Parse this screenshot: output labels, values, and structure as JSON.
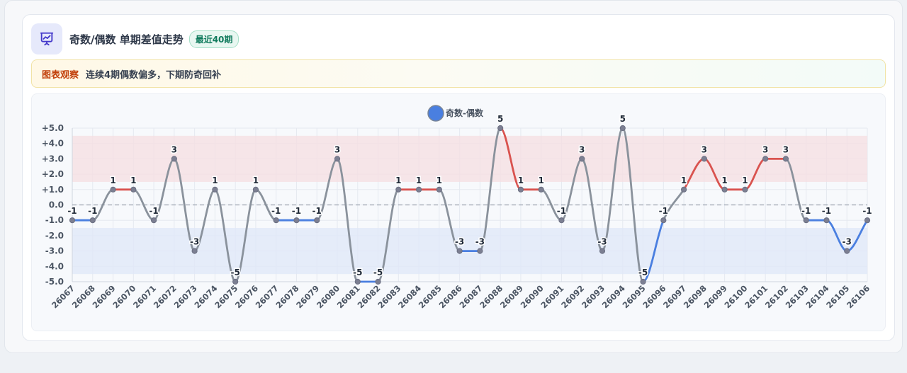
{
  "header": {
    "icon": "presentation-chart-icon",
    "title": "奇数/偶数 单期差值走势",
    "badge": "最近40期"
  },
  "notice": {
    "label": "图表观察",
    "text": "连续4期偶数偏多，下期防奇回补"
  },
  "colors": {
    "positive": "#d9534f",
    "negative": "#4a7fe0",
    "neutral": "#8a929c",
    "legend_dot": "#4a7fe0",
    "band_positive": "#f6dde2",
    "band_negative": "#dfe7f8"
  },
  "chart_data": {
    "type": "line",
    "legend": "奇数-偶数",
    "legend_position": "top-center",
    "categories": [
      "26067",
      "26068",
      "26069",
      "26070",
      "26071",
      "26072",
      "26073",
      "26074",
      "26075",
      "26076",
      "26077",
      "26078",
      "26079",
      "26080",
      "26081",
      "26082",
      "26083",
      "26084",
      "26085",
      "26086",
      "26087",
      "26088",
      "26089",
      "26090",
      "26091",
      "26092",
      "26093",
      "26094",
      "26095",
      "26096",
      "26097",
      "26098",
      "26099",
      "26100",
      "26101",
      "26102",
      "26103",
      "26104",
      "26105",
      "26106"
    ],
    "values": [
      -1,
      -1,
      1,
      1,
      -1,
      3,
      -3,
      1,
      -5,
      1,
      -1,
      -1,
      -1,
      3,
      -5,
      -5,
      1,
      1,
      1,
      -3,
      -3,
      5,
      1,
      1,
      -1,
      3,
      -3,
      5,
      -5,
      -1,
      1,
      3,
      1,
      1,
      3,
      3,
      -1,
      -1,
      -3,
      -1
    ],
    "ylim": [
      -5,
      5
    ],
    "yticks": [
      "+5.0",
      "+4.0",
      "+3.0",
      "+2.0",
      "+1.0",
      "0.0",
      "-1.0",
      "-2.0",
      "-3.0",
      "-4.0",
      "-5.0"
    ],
    "bands": [
      {
        "from": 1.5,
        "to": 4.5,
        "tone": "positive"
      },
      {
        "from": -4.5,
        "to": -1.5,
        "tone": "negative"
      }
    ],
    "reference_line": 0,
    "grid": true
  }
}
